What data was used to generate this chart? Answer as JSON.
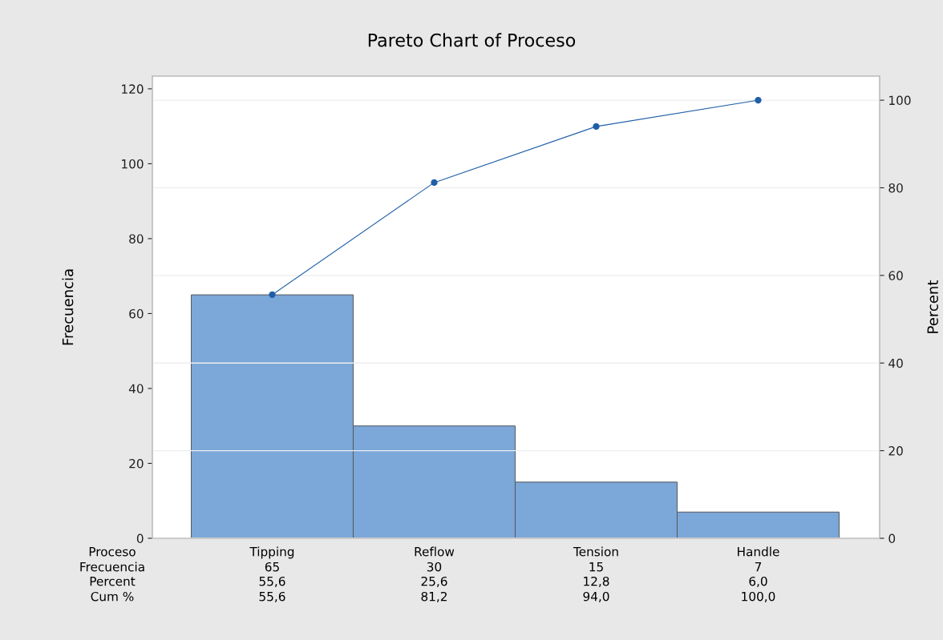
{
  "chart_data": {
    "type": "bar",
    "title": "Pareto Chart of Proceso",
    "xlabel": "Proceso",
    "ylabel": "Frecuencia",
    "y2label": "Percent",
    "categories": [
      "Tipping",
      "Reflow",
      "Tension",
      "Handle"
    ],
    "series": [
      {
        "color": "#7ba7d9",
        "values": [
          65,
          30,
          15,
          7
        ],
        "value_labels": [
          "65",
          "30",
          "15",
          "7"
        ]
      },
      {
        "type": "line",
        "axis": "y2",
        "color": "#1f5fa8",
        "values": [
          55.6,
          81.2,
          94.0,
          100.0
        ],
        "value_labels": [
          "55,6",
          "81,2",
          "94,0",
          "100,0"
        ]
      }
    ],
    "annotations": [
      "Frecuencia",
      "Percent",
      "Cum %",
      "55,6",
      "25,6",
      "12,8",
      "6,0"
    ],
    "ylim": [
      0,
      123.4
    ],
    "yticks": [
      0,
      20,
      40,
      60,
      80,
      100,
      120
    ],
    "y2lim": [
      0,
      105.5
    ],
    "y2ticks": [
      0,
      20,
      40,
      60,
      80,
      100
    ],
    "grid": "y",
    "marker": "circle",
    "line_style": "solid"
  }
}
